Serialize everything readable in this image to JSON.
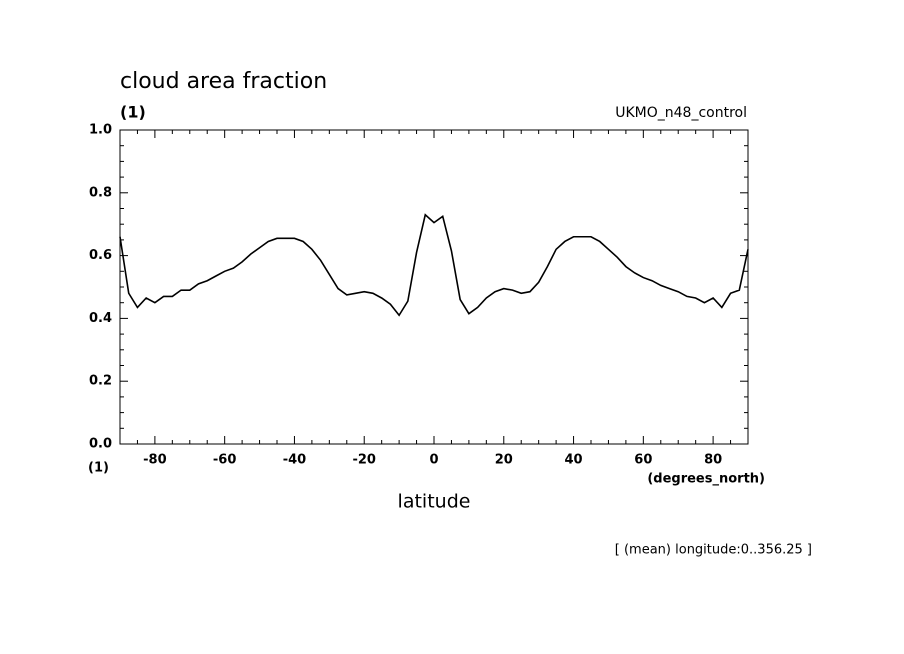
{
  "chart_data": {
    "type": "line",
    "title": "cloud area fraction",
    "y_units": "(1)",
    "dataset": "UKMO_n48_control",
    "y_units_bottom": "(1)",
    "x_units": "(degrees_north)",
    "xlabel": "latitude",
    "note": "[ (mean) longitude:0..356.25 ]",
    "color": "#000000",
    "xlim": [
      -90,
      90
    ],
    "ylim": [
      0,
      1
    ],
    "xticks": [
      -80,
      -60,
      -40,
      -20,
      0,
      20,
      40,
      60,
      80
    ],
    "yticks": [
      {
        "value": 0,
        "label": "0.0"
      },
      0.2,
      0.4,
      0.6,
      0.8,
      {
        "value": 1,
        "label": "1.0"
      }
    ],
    "x": [
      -90,
      -87.5,
      -85,
      -82.5,
      -80,
      -77.5,
      -75,
      -72.5,
      -70,
      -67.5,
      -65,
      -62.5,
      -60,
      -57.5,
      -55,
      -52.5,
      -50,
      -47.5,
      -45,
      -42.5,
      -40,
      -37.5,
      -35,
      -32.5,
      -30,
      -27.5,
      -25,
      -22.5,
      -20,
      -17.5,
      -15,
      -12.5,
      -10,
      -7.5,
      -5,
      -2.5,
      0,
      2.5,
      5,
      7.5,
      10,
      12.5,
      15,
      17.5,
      20,
      22.5,
      25,
      27.5,
      30,
      32.5,
      35,
      37.5,
      40,
      42.5,
      45,
      47.5,
      50,
      52.5,
      55,
      57.5,
      60,
      62.5,
      65,
      67.5,
      70,
      72.5,
      75,
      77.5,
      80,
      82.5,
      85,
      87.5,
      90
    ],
    "values": [
      0.66,
      0.48,
      0.435,
      0.465,
      0.45,
      0.47,
      0.47,
      0.49,
      0.49,
      0.51,
      0.52,
      0.535,
      0.55,
      0.56,
      0.58,
      0.605,
      0.625,
      0.645,
      0.655,
      0.655,
      0.655,
      0.645,
      0.62,
      0.585,
      0.54,
      0.495,
      0.475,
      0.48,
      0.485,
      0.48,
      0.465,
      0.445,
      0.41,
      0.455,
      0.61,
      0.73,
      0.705,
      0.725,
      0.615,
      0.46,
      0.415,
      0.435,
      0.465,
      0.485,
      0.495,
      0.49,
      0.48,
      0.485,
      0.515,
      0.565,
      0.62,
      0.645,
      0.66,
      0.66,
      0.66,
      0.645,
      0.62,
      0.595,
      0.565,
      0.545,
      0.53,
      0.52,
      0.505,
      0.495,
      0.485,
      0.47,
      0.465,
      0.45,
      0.465,
      0.435,
      0.48,
      0.49,
      0.62
    ]
  }
}
